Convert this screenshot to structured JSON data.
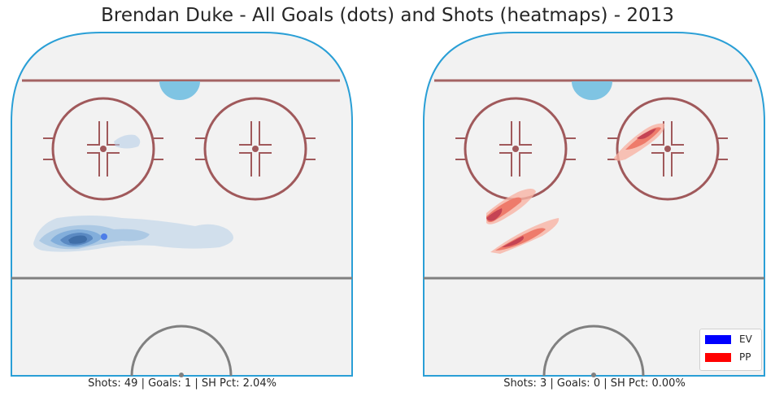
{
  "title": "Brendan Duke - All Goals (dots) and Shots (heatmaps) - 2013",
  "colors": {
    "ev": "#0000ff",
    "pp": "#ff0000",
    "rink_border": "#2a9fd6",
    "red_line": "#a46464",
    "faceoff": "#a0595b",
    "crease": "#7fc4e3",
    "blue_line": "#808080",
    "ice": "#f2f2f2"
  },
  "legend": {
    "ev_label": "EV",
    "pp_label": "PP"
  },
  "chart_data": [
    {
      "type": "heatmap",
      "panel": "left",
      "strength": "EV",
      "caption": "Shots: 49 | Goals: 1 | SH Pct: 2.04%",
      "shots": 49,
      "goals": 1,
      "sh_pct": "2.04%",
      "color": "blue",
      "hotspot_zones": [
        "left-point area",
        "left faceoff circle (light)"
      ],
      "goal_dots": 1
    },
    {
      "type": "heatmap",
      "panel": "right",
      "strength": "PP",
      "caption": "Shots: 3 | Goals: 0 | SH Pct: 0.00%",
      "shots": 3,
      "goals": 0,
      "sh_pct": "0.00%",
      "color": "red",
      "hotspot_zones": [
        "right faceoff circle",
        "left half-wall (two streaks)"
      ],
      "goal_dots": 0
    }
  ]
}
